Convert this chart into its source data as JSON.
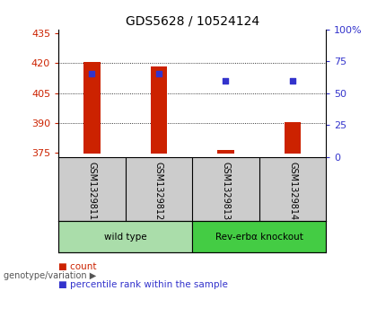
{
  "title": "GDS5628 / 10524124",
  "samples": [
    "GSM1329811",
    "GSM1329812",
    "GSM1329813",
    "GSM1329814"
  ],
  "count_values": [
    420.5,
    418.5,
    376.5,
    390.5
  ],
  "count_base": 374.5,
  "percentile_values": [
    65,
    65,
    60,
    60
  ],
  "ylim_left": [
    373,
    437
  ],
  "ylim_right": [
    0,
    100
  ],
  "yticks_left": [
    375,
    390,
    405,
    420,
    435
  ],
  "yticks_right": [
    0,
    25,
    50,
    75,
    100
  ],
  "bar_color": "#cc2200",
  "dot_color": "#3333cc",
  "bg_color": "#cccccc",
  "group_info": [
    {
      "label": "wild type",
      "span": [
        0,
        1
      ],
      "color": "#aaddaa"
    },
    {
      "label": "Rev-erbα knockout",
      "span": [
        2,
        3
      ],
      "color": "#44cc44"
    }
  ],
  "legend_count_label": "count",
  "legend_pct_label": "percentile rank within the sample",
  "title_fontsize": 10,
  "axis_fontsize": 8,
  "label_fontsize": 8,
  "bar_width": 0.25
}
